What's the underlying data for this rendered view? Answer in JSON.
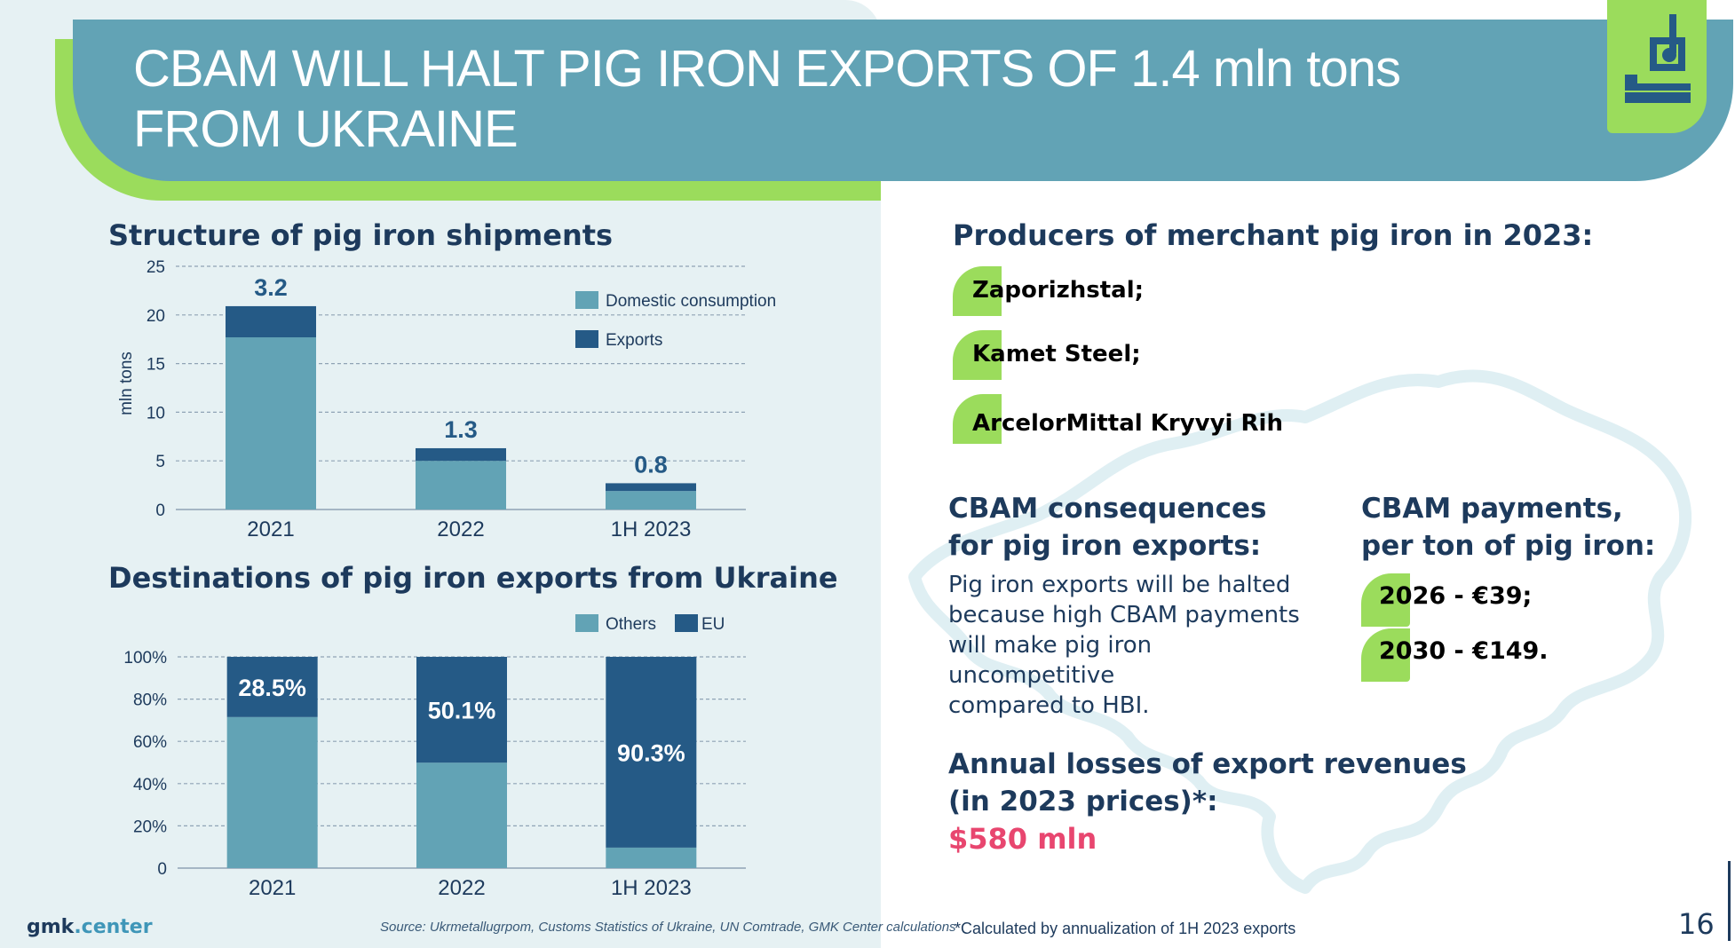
{
  "header": {
    "title_line1": "CBAM WILL HALT PIG IRON EXPORTS OF 1.4 mln tons",
    "title_line2": "FROM UKRAINE",
    "logo_icon": "ladle-icon"
  },
  "colors": {
    "dark_blue": "#255a86",
    "light_blue": "#62a3b5",
    "green": "#9bdc5c",
    "accent_red": "#e8466f",
    "text": "#1d3a5c"
  },
  "chart_shipments": {
    "title": "Structure of pig iron shipments",
    "chart_data": {
      "type": "bar",
      "stacked": true,
      "categories": [
        "2021",
        "2022",
        "1H 2023"
      ],
      "series": [
        {
          "name": "Domestic consumption",
          "values": [
            17.7,
            5.0,
            1.9
          ],
          "color": "#62a3b5"
        },
        {
          "name": "Exports",
          "values": [
            3.2,
            1.3,
            0.8
          ],
          "color": "#255a86"
        }
      ],
      "data_labels": [
        "3.2",
        "1.3",
        "0.8"
      ],
      "ylabel": "mln tons",
      "yticks": [
        "0",
        "5",
        "10",
        "15",
        "20",
        "25"
      ],
      "ylim": [
        0,
        25
      ],
      "grid": true,
      "legend": "top-right"
    }
  },
  "chart_destinations": {
    "title": "Destinations of pig iron exports from Ukraine",
    "chart_data": {
      "type": "bar",
      "stacked": true,
      "categories": [
        "2021",
        "2022",
        "1H 2023"
      ],
      "series": [
        {
          "name": "Others",
          "values": [
            71.5,
            49.9,
            9.7
          ],
          "color": "#62a3b5"
        },
        {
          "name": "EU",
          "values": [
            28.5,
            50.1,
            90.3
          ],
          "color": "#255a86"
        }
      ],
      "data_labels": [
        "28.5%",
        "50.1%",
        "90.3%"
      ],
      "yticks": [
        "0",
        "20%",
        "40%",
        "60%",
        "80%",
        "100%"
      ],
      "ylim": [
        0,
        100
      ],
      "grid": true,
      "legend": "top-right"
    }
  },
  "producers": {
    "title": "Producers of merchant pig iron in 2023:",
    "items": [
      "Zaporizhstal;",
      "Kamet Steel;",
      "ArcelorMittal Kryvyi Rih"
    ]
  },
  "consequences": {
    "title_line1": "CBAM consequences",
    "title_line2": "for pig iron exports:",
    "body_lines": [
      "Pig iron exports will be halted",
      "because high CBAM payments",
      "will make pig iron uncompetitive",
      "compared to HBI."
    ]
  },
  "payments": {
    "title_line1": "CBAM payments,",
    "title_line2": "per ton of pig iron:",
    "items": [
      "2026 - €39;",
      "2030 - €149."
    ]
  },
  "losses": {
    "title_line1": "Annual losses of export revenues",
    "title_line2": "(in 2023 prices)*:",
    "value": "$580 mln"
  },
  "footer": {
    "brand_part1": "gmk",
    "brand_part2": ".center",
    "source": "Source: Ukrmetallugrpom, Customs Statistics of Ukraine, UN Comtrade, GMK Center calculations",
    "footnote": "*Calculated by annualization of 1H 2023 exports",
    "page_number": "16"
  }
}
